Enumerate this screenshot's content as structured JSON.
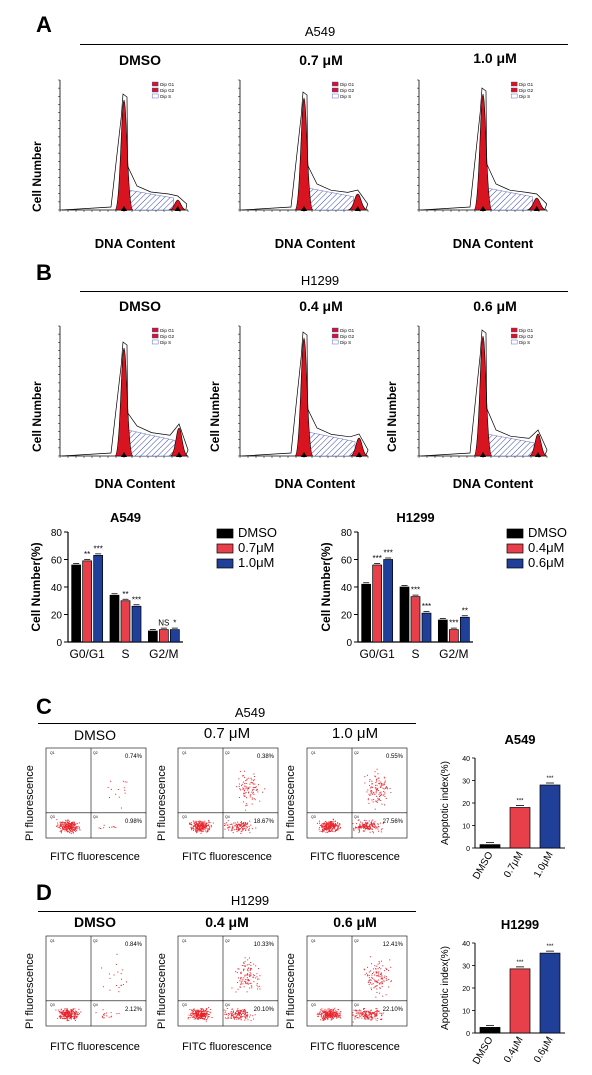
{
  "panelA": {
    "letter": "A",
    "title": "A549",
    "conditions": [
      "DMSO",
      "0.7 μM",
      "1.0 μM"
    ],
    "ylabel": "Cell Number",
    "xlabel": "DNA Content",
    "legend": [
      "Dip G1",
      "Dip G2",
      "Dip S"
    ]
  },
  "panelB": {
    "letter": "B",
    "title": "H1299",
    "conditions": [
      "DMSO",
      "0.4 μM",
      "0.6 μM"
    ],
    "ylabel": "Cell Number",
    "xlabel": "DNA Content",
    "legend": [
      "Dip G1",
      "Dip G2",
      "Dip S"
    ]
  },
  "panelC": {
    "letter": "C",
    "title": "A549",
    "conditions": [
      "DMSO",
      "0.7 μM",
      "1.0 μM"
    ],
    "ylabel": "PI fluorescence",
    "xlabel": "FITC fluorescence",
    "upper_right": [
      "0.74%",
      "0.38%",
      "0.55%"
    ],
    "lower_right": [
      "0.98%",
      "18.67%",
      "27.56%"
    ]
  },
  "panelD": {
    "letter": "D",
    "title": "H1299",
    "conditions": [
      "DMSO",
      "0.4 μM",
      "0.6 μM"
    ],
    "ylabel": "PI fluorescence",
    "xlabel": "FITC fluorescence",
    "upper_right": [
      "0.84%",
      "10.33%",
      "12.41%"
    ],
    "lower_right": [
      "2.12%",
      "20.10%",
      "22.10%"
    ]
  },
  "chart_data": [
    {
      "type": "bar",
      "title": "A549",
      "categories": [
        "G0/G1",
        "S",
        "G2/M"
      ],
      "ylabel": "Cell Number(%)",
      "ylim": [
        0,
        80
      ],
      "yticks": [
        0,
        20,
        40,
        60,
        80
      ],
      "series": [
        {
          "name": "DMSO",
          "values": [
            56,
            34,
            8
          ],
          "color": "#000000"
        },
        {
          "name": "0.7μM",
          "values": [
            59,
            30,
            9
          ],
          "color": "#e8404a"
        },
        {
          "name": "1.0μM",
          "values": [
            63,
            26,
            9
          ],
          "color": "#1f3f99"
        }
      ],
      "significance": [
        [
          "",
          "**",
          "***"
        ],
        [
          "",
          "**",
          "***"
        ],
        [
          "",
          "NS",
          "*"
        ]
      ]
    },
    {
      "type": "bar",
      "title": "H1299",
      "categories": [
        "G0/G1",
        "S",
        "G2/M"
      ],
      "ylabel": "Cell Number(%)",
      "ylim": [
        0,
        80
      ],
      "yticks": [
        0,
        20,
        40,
        60,
        80
      ],
      "series": [
        {
          "name": "DMSO",
          "values": [
            42,
            40,
            16
          ],
          "color": "#000000"
        },
        {
          "name": "0.4μM",
          "values": [
            56,
            33,
            9
          ],
          "color": "#e8404a"
        },
        {
          "name": "0.6μM",
          "values": [
            60,
            21,
            18
          ],
          "color": "#1f3f99"
        }
      ],
      "significance": [
        [
          "",
          "***",
          "***"
        ],
        [
          "",
          "***",
          "***"
        ],
        [
          "",
          "***",
          "**"
        ]
      ]
    },
    {
      "type": "bar",
      "title": "A549",
      "categories": [
        "DMSO",
        "0.7μM",
        "1.0μM"
      ],
      "ylabel": "Apoptotic index(%)",
      "ylim": [
        0,
        40
      ],
      "yticks": [
        0,
        10,
        20,
        30,
        40
      ],
      "values": [
        1.5,
        18,
        28
      ],
      "colors": [
        "#000000",
        "#e8404a",
        "#1f3f99"
      ],
      "significance": [
        "",
        "***",
        "***"
      ]
    },
    {
      "type": "bar",
      "title": "H1299",
      "categories": [
        "DMSO",
        "0.4μM",
        "0.6μM"
      ],
      "ylabel": "Apoptotic index(%)",
      "ylim": [
        0,
        40
      ],
      "yticks": [
        0,
        10,
        20,
        30,
        40
      ],
      "values": [
        2.5,
        28.5,
        35.5
      ],
      "colors": [
        "#000000",
        "#e8404a",
        "#1f3f99"
      ],
      "significance": [
        "",
        "***",
        "***"
      ]
    }
  ]
}
